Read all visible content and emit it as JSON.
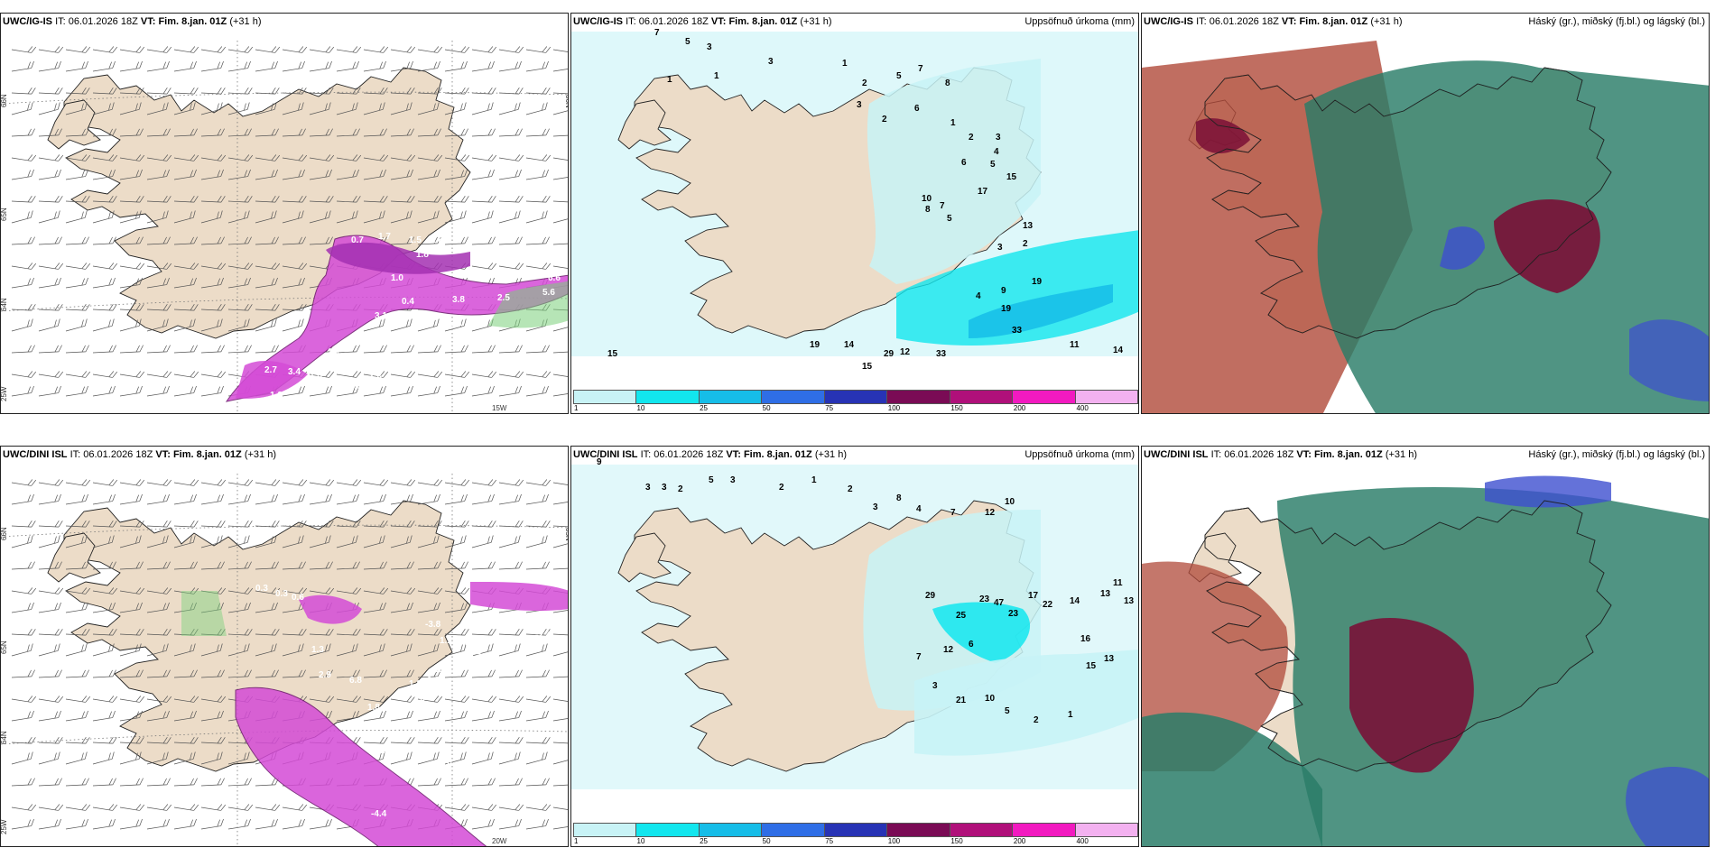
{
  "panels": [
    {
      "id": "ig-is-wind",
      "model": "UWC/IG-IS",
      "it_label": "IT:",
      "it": "06.01.2026 18Z",
      "vt_label": "VT:",
      "vt": "Fim. 8.jan. 01Z",
      "lead": "(+31 h)",
      "right_title": "",
      "labels": [
        "0.7",
        "1.7",
        "1.5",
        "2.6",
        "1.8",
        "1.0",
        "0.4",
        "3.1",
        "3.1",
        "4.4",
        "3.8",
        "2.5",
        "5.6",
        "6.6",
        "2.7",
        "3.4",
        "1.8",
        "1.2",
        "1.0",
        "1.0",
        "0.9",
        "0.6",
        "1.1"
      ],
      "coords": [
        "66N",
        "65N",
        "64N",
        "25W",
        "15W",
        "66N"
      ]
    },
    {
      "id": "ig-is-precip",
      "model": "UWC/IG-IS",
      "it_label": "IT:",
      "it": "06.01.2026 18Z",
      "vt_label": "VT:",
      "vt": "Fim. 8.jan. 01Z",
      "lead": "(+31 h)",
      "right_title": "Uppsöfnuð úrkoma (mm)",
      "labels": [
        "7",
        "5",
        "3",
        "1",
        "3",
        "1",
        "1",
        "2",
        "5",
        "7",
        "8",
        "1",
        "2",
        "3",
        "4",
        "5",
        "6",
        "15",
        "17",
        "7",
        "13",
        "3",
        "2",
        "4",
        "9",
        "19",
        "19",
        "33",
        "33",
        "29",
        "15",
        "12",
        "14",
        "19",
        "15",
        "11",
        "14",
        "10",
        "8",
        "5",
        "3",
        "2",
        "6"
      ],
      "colorbar": [
        "1",
        "10",
        "25",
        "50",
        "75",
        "100",
        "150",
        "200",
        "400"
      ]
    },
    {
      "id": "ig-is-cloud",
      "model": "UWC/IG-IS",
      "it_label": "IT:",
      "it": "06.01.2026 18Z",
      "vt_label": "VT:",
      "vt": "Fim. 8.jan. 01Z",
      "lead": "(+31 h)",
      "right_title": "Háský (gr.), miðský (fj.bl.) og lágský (bl.)"
    },
    {
      "id": "dini-wind",
      "model": "UWC/DINI ISL",
      "it_label": "IT:",
      "it": "06.01.2026 18Z",
      "vt_label": "VT:",
      "vt": "Fim. 8.jan. 01Z",
      "lead": "(+31 h)",
      "right_title": "",
      "labels": [
        "0.3",
        "0.3",
        "0.6",
        "1.3",
        "2.9",
        "6.8",
        "1.8",
        "2.6",
        "5.0",
        "-2.4",
        "-4.4",
        "-3.8",
        "-2.4",
        "0.7",
        "1.1",
        "1.0",
        "2.2",
        "1.3",
        "1.8"
      ],
      "coords": [
        "66N",
        "65N",
        "64N",
        "25W",
        "20W",
        "65N"
      ]
    },
    {
      "id": "dini-precip",
      "model": "UWC/DINI ISL",
      "it_label": "IT:",
      "it": "06.01.2026 18Z",
      "vt_label": "VT:",
      "vt": "Fim. 8.jan. 01Z",
      "lead": "(+31 h)",
      "right_title": "Uppsöfnuð úrkoma (mm)",
      "labels": [
        "9",
        "3",
        "3",
        "2",
        "5",
        "3",
        "2",
        "1",
        "2",
        "3",
        "8",
        "4",
        "7",
        "12",
        "10",
        "29",
        "25",
        "23",
        "47",
        "23",
        "17",
        "22",
        "14",
        "13",
        "11",
        "13",
        "16",
        "15",
        "13",
        "7",
        "12",
        "6",
        "3",
        "21",
        "10",
        "5",
        "2",
        "1"
      ],
      "colorbar": [
        "1",
        "10",
        "25",
        "50",
        "75",
        "100",
        "150",
        "200",
        "400"
      ]
    },
    {
      "id": "dini-cloud",
      "model": "UWC/DINI ISL",
      "it_label": "IT:",
      "it": "06.01.2026 18Z",
      "vt_label": "VT:",
      "vt": "Fim. 8.jan. 01Z",
      "lead": "(+31 h)",
      "right_title": "Háský (gr.), miðský (fj.bl.) og lágský (bl.)"
    }
  ],
  "colors": {
    "land": "#ecdcc8",
    "sea": "#ffffff",
    "precip_1": "#c8f3f6",
    "precip_10": "#12e6ee",
    "precip_25": "#16bde8",
    "precip_50": "#2f6ee6",
    "precip_75": "#2733b5",
    "precip_100": "#7a0b55",
    "precip_150": "#b0107a",
    "precip_200": "#f21ac0",
    "precip_400": "#f3b1f0",
    "wind_magenta": "#d44bd6",
    "high_cloud": "#b04a3a",
    "mid_cloud": "#2a7c68",
    "low_cloud": "#3d4fd0",
    "deep_cloud": "#7a0f36"
  }
}
